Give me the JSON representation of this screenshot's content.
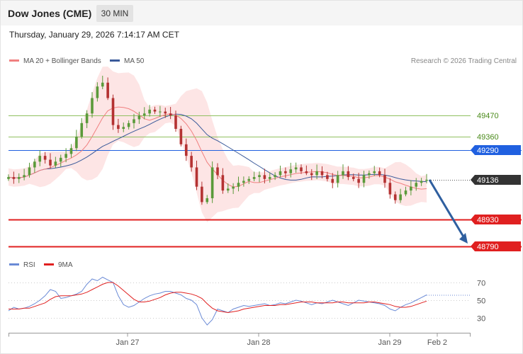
{
  "header": {
    "title": "Dow Jones (CME)",
    "timeframe": "30 MIN",
    "datetime": "Thursday, January 29, 2026 7:14:17 AM CET",
    "copyright": "Research © 2026 Trading Central"
  },
  "legend": {
    "ma20_bb": "MA 20 + Bollinger Bands",
    "ma50": "MA 50",
    "rsi": "RSI",
    "rsi_ma": "9MA"
  },
  "colors": {
    "ma20": "#f08080",
    "bollinger_fill": "#fde0e0",
    "ma50": "#3a5a9a",
    "bull_candle": "#5a9a3a",
    "bear_candle": "#b43232",
    "support": "#e02020",
    "resistance": "#90c060",
    "pivot": "#2060e0",
    "current": "#333333",
    "arrow": "#2f5f9f",
    "rsi": "#6a8ad6",
    "rsi_ma": "#e02020"
  },
  "chart_data": [
    {
      "type": "line",
      "title": "Dow Jones (CME)",
      "timeframe": "30 MIN",
      "x_ticks": [
        "Jan 27",
        "Jan 28",
        "Jan 29",
        "Feb 2"
      ],
      "ylim": [
        48700,
        49700
      ],
      "grid": false,
      "legend_position": "top-left",
      "last_price": 49136,
      "levels": [
        {
          "value": 49470,
          "kind": "resistance",
          "label": "49470"
        },
        {
          "value": 49360,
          "kind": "resistance",
          "label": "49360"
        },
        {
          "value": 49290,
          "kind": "pivot",
          "label": "49290"
        },
        {
          "value": 49136,
          "kind": "current",
          "label": "49136"
        },
        {
          "value": 48930,
          "kind": "support",
          "label": "48930"
        },
        {
          "value": 48790,
          "kind": "support",
          "label": "48790"
        }
      ],
      "projection": {
        "from": 49136,
        "to": 48790,
        "direction": "down"
      },
      "series": [
        {
          "name": "MA 20 + Bollinger Bands",
          "type": "band"
        },
        {
          "name": "MA 50",
          "type": "line"
        }
      ],
      "close_path": [
        49150,
        49140,
        49150,
        49160,
        49200,
        49230,
        49260,
        49240,
        49210,
        49230,
        49250,
        49270,
        49300,
        49360,
        49430,
        49480,
        49560,
        49620,
        49640,
        49560,
        49420,
        49400,
        49410,
        49430,
        49450,
        49470,
        49480,
        49500,
        49490,
        49490,
        49480,
        49470,
        49400,
        49320,
        49260,
        49200,
        49100,
        49020,
        49040,
        49200,
        49160,
        49080,
        49090,
        49100,
        49120,
        49130,
        49140,
        49150,
        49160,
        49140,
        49150,
        49160,
        49180,
        49170,
        49190,
        49200,
        49180,
        49170,
        49160,
        49180,
        49160,
        49140,
        49120,
        49160,
        49180,
        49150,
        49140,
        49120,
        49160,
        49170,
        49180,
        49160,
        49120,
        49060,
        49030,
        49060,
        49080,
        49100,
        49120,
        49130,
        49136
      ]
    },
    {
      "type": "line",
      "title": "RSI",
      "ylim": [
        20,
        80
      ],
      "y_ticks": [
        30,
        50,
        70
      ],
      "last_value": 56,
      "series": [
        {
          "name": "RSI",
          "values": [
            38,
            42,
            40,
            41,
            43,
            46,
            50,
            55,
            62,
            60,
            52,
            53,
            55,
            57,
            60,
            68,
            74,
            72,
            76,
            73,
            70,
            55,
            45,
            42,
            44,
            48,
            52,
            55,
            57,
            58,
            60,
            60,
            58,
            56,
            52,
            50,
            45,
            30,
            22,
            28,
            40,
            38,
            36,
            40,
            42,
            44,
            43,
            44,
            45,
            46,
            44,
            45,
            47,
            46,
            48,
            50,
            49,
            47,
            45,
            47,
            46,
            48,
            50,
            48,
            46,
            44,
            47,
            50,
            49,
            48,
            47,
            46,
            44,
            40,
            38,
            42,
            45,
            47,
            50,
            53,
            56
          ]
        },
        {
          "name": "9MA",
          "values": [
            40,
            40,
            40,
            41,
            41,
            43,
            45,
            47,
            51,
            54,
            55,
            55,
            55,
            56,
            57,
            59,
            62,
            65,
            68,
            70,
            70,
            66,
            61,
            56,
            51,
            48,
            48,
            49,
            51,
            53,
            56,
            58,
            59,
            59,
            58,
            57,
            55,
            52,
            46,
            41,
            38,
            37,
            36,
            37,
            38,
            40,
            41,
            42,
            43,
            44,
            44,
            44,
            45,
            45,
            46,
            47,
            48,
            48,
            48,
            47,
            47,
            47,
            47,
            48,
            48,
            47,
            47,
            47,
            47,
            48,
            48,
            47,
            46,
            45,
            43,
            42,
            42,
            43,
            45,
            47,
            49
          ]
        }
      ]
    }
  ]
}
